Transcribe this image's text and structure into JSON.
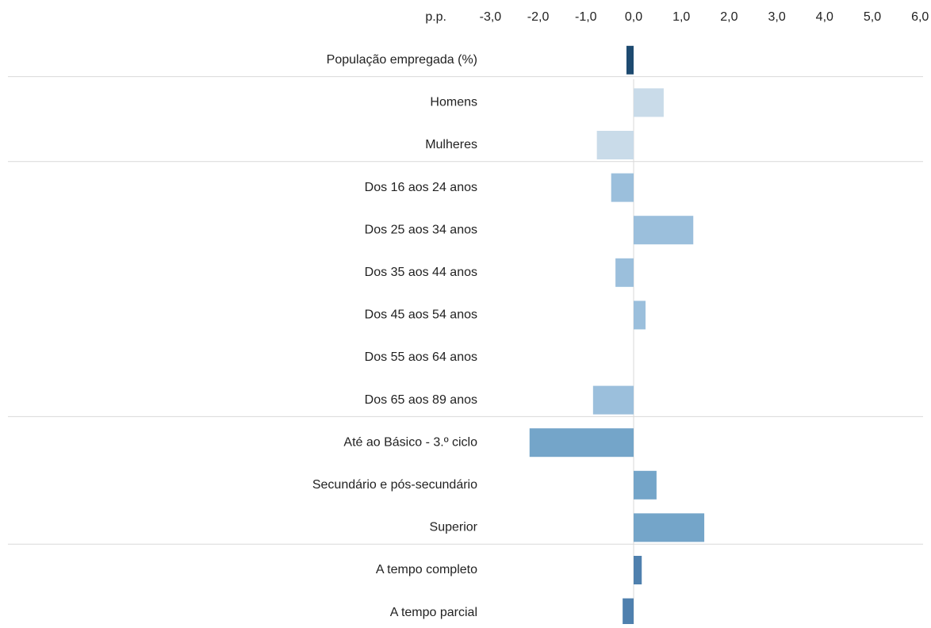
{
  "chart_data": {
    "type": "barh",
    "x_label": "p.p.",
    "categories": [
      "População empregada (%)",
      "Homens",
      "Mulheres",
      "Dos 16 aos 24 anos",
      "Dos 25 aos 34 anos",
      "Dos 35 aos 44 anos",
      "Dos 45 aos 54 anos",
      "Dos 55 aos 64 anos",
      "Dos 65 aos 89 anos",
      "Até ao Básico - 3.º ciclo",
      "Secundário e pós-secundário",
      "Superior",
      "A tempo completo",
      "A tempo parcial"
    ],
    "values": [
      -0.15,
      0.63,
      -0.77,
      -0.47,
      1.25,
      -0.38,
      0.25,
      0,
      -0.85,
      -2.18,
      0.48,
      1.48,
      0.17,
      -0.23
    ],
    "colors": [
      "#1d4a70",
      "#c9dbe9",
      "#c9dbe9",
      "#9bbfdc",
      "#9bbfdc",
      "#9bbfdc",
      "#9bbfdc",
      "#9bbfdc",
      "#9bbfdc",
      "#74a5c9",
      "#74a5c9",
      "#74a5c9",
      "#4f80ae",
      "#4f80ae"
    ],
    "xlim": [
      -3,
      6
    ],
    "xticks": [
      {
        "value": -3,
        "label": "-3,0"
      },
      {
        "value": -2,
        "label": "-2,0"
      },
      {
        "value": -1,
        "label": "-1,0"
      },
      {
        "value": 0,
        "label": "0,0"
      },
      {
        "value": 1,
        "label": "1,0"
      },
      {
        "value": 2,
        "label": "2,0"
      },
      {
        "value": 3,
        "label": "3,0"
      },
      {
        "value": 4,
        "label": "4,0"
      },
      {
        "value": 5,
        "label": "5,0"
      },
      {
        "value": 6,
        "label": "6,0"
      }
    ]
  }
}
